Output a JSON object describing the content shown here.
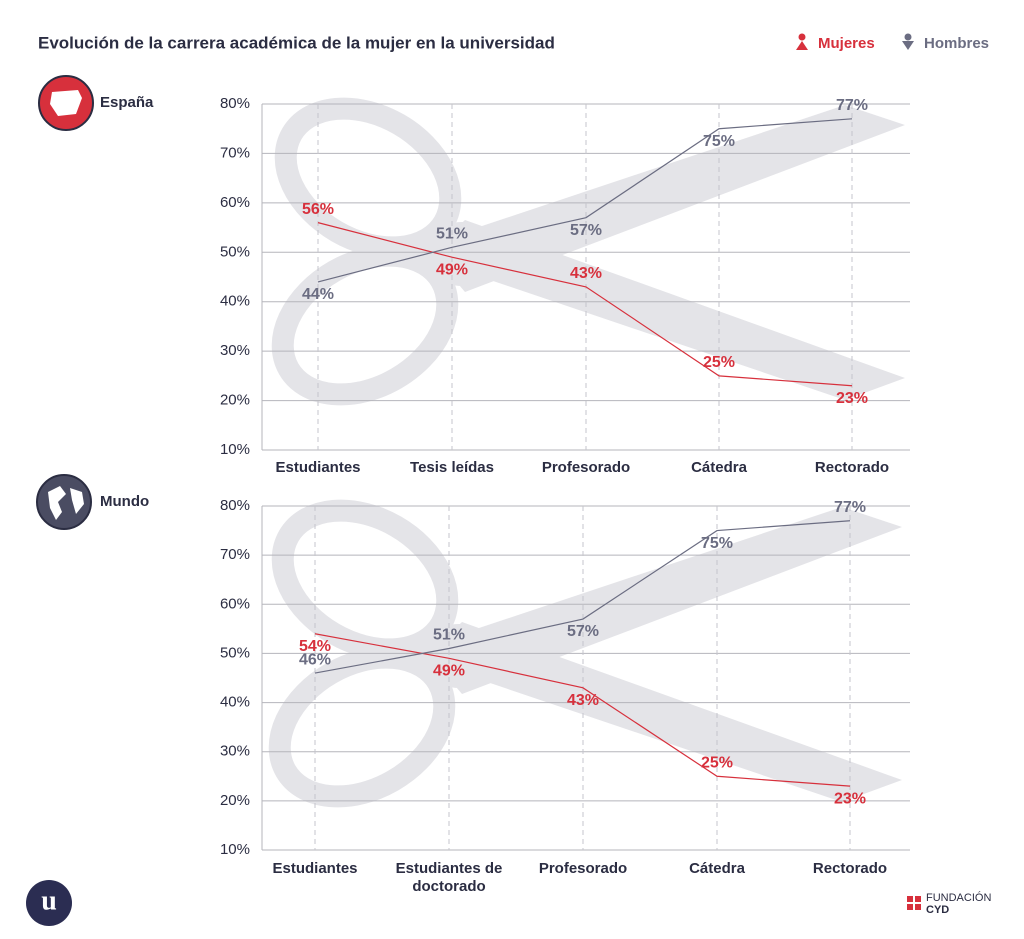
{
  "header": {
    "title": "Evolución de la carrera académica de la mujer en la universidad"
  },
  "chart_data": [
    {
      "type": "line",
      "title": "España",
      "categories": [
        "Estudiantes",
        "Tesis leídas",
        "Profesorado",
        "Cátedra",
        "Rectorado"
      ],
      "series": [
        {
          "name": "Mujeres",
          "color": "#d7303c",
          "values": [
            56,
            49,
            43,
            25,
            23
          ],
          "value_labels": [
            "56%",
            "49%",
            "43%",
            "25%",
            "23%"
          ]
        },
        {
          "name": "Hombres",
          "color": "#6b6d82",
          "values": [
            44,
            51,
            57,
            75,
            77
          ],
          "value_labels": [
            "44%",
            "51%",
            "57%",
            "75%",
            "77%"
          ]
        }
      ],
      "ylim": [
        10,
        80
      ],
      "yticks": [
        {
          "value": 10,
          "label": "10%"
        },
        {
          "value": 20,
          "label": "20%"
        },
        {
          "value": 30,
          "label": "30%"
        },
        {
          "value": 40,
          "label": "40%"
        },
        {
          "value": 50,
          "label": "50%"
        },
        {
          "value": 60,
          "label": "60%"
        },
        {
          "value": 70,
          "label": "70%"
        },
        {
          "value": 80,
          "label": "80%"
        }
      ],
      "grid": true
    },
    {
      "type": "line",
      "title": "Mundo",
      "categories": [
        "Estudiantes",
        "Estudiantes de doctorado",
        "Profesorado",
        "Cátedra",
        "Rectorado"
      ],
      "series": [
        {
          "name": "Mujeres",
          "color": "#d7303c",
          "values": [
            54,
            49,
            43,
            25,
            23
          ],
          "value_labels": [
            "54%",
            "49%",
            "43%",
            "25%",
            "23%"
          ]
        },
        {
          "name": "Hombres",
          "color": "#6b6d82",
          "values": [
            46,
            51,
            57,
            75,
            77
          ],
          "value_labels": [
            "46%",
            "51%",
            "57%",
            "75%",
            "77%"
          ]
        }
      ],
      "ylim": [
        10,
        80
      ],
      "yticks": [
        {
          "value": 10,
          "label": "10%"
        },
        {
          "value": 20,
          "label": "20%"
        },
        {
          "value": 30,
          "label": "30%"
        },
        {
          "value": 40,
          "label": "40%"
        },
        {
          "value": 50,
          "label": "50%"
        },
        {
          "value": 60,
          "label": "60%"
        },
        {
          "value": 70,
          "label": "70%"
        },
        {
          "value": 80,
          "label": "80%"
        }
      ],
      "grid": true
    }
  ],
  "footer": {
    "logo": "u",
    "brand_top": "FUNDACIÓN",
    "brand_bottom": "CYD"
  }
}
